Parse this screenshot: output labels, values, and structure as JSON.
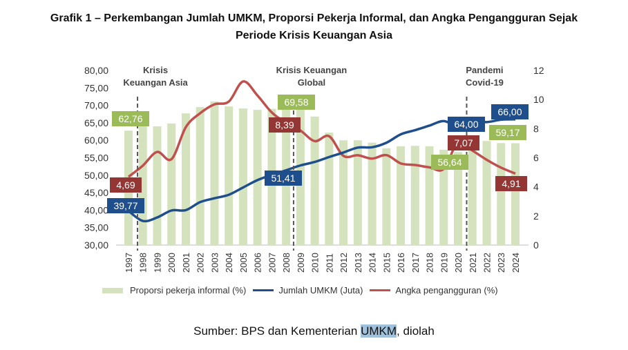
{
  "title_line1": "Grafik 1 – Perkembangan Jumlah UMKM, Proporsi Pekerja Informal, dan Angka Pengangguran Sejak",
  "title_line2": "Periode Krisis Keuangan Asia",
  "source": {
    "prefix": "Sumber: BPS dan Kementerian ",
    "highlighted": "UMKM",
    "suffix": ", diolah"
  },
  "colors": {
    "bars": "#d4e2bd",
    "umkm": "#1f4e8c",
    "unemployment": "#c0504d",
    "label_green": "#9bbb59",
    "label_red": "#943634",
    "label_blue": "#1f4e8c",
    "dashed": "#555555"
  },
  "chart_data": {
    "type": "bar+line",
    "categories": [
      "1997",
      "1998",
      "1999",
      "2000",
      "2001",
      "2002",
      "2003",
      "2004",
      "2005",
      "2006",
      "2007",
      "2008",
      "2009",
      "2010",
      "2011",
      "2012",
      "2013",
      "2014",
      "2015",
      "2016",
      "2017",
      "2018",
      "2019",
      "2020",
      "2021",
      "2022",
      "2023",
      "2024"
    ],
    "left_axis": {
      "range": [
        30,
        80
      ],
      "ticks": [
        "30,00",
        "35,00",
        "40,00",
        "45,00",
        "50,00",
        "55,00",
        "60,00",
        "65,00",
        "70,00",
        "75,00",
        "80,00"
      ]
    },
    "right_axis": {
      "range": [
        0,
        12
      ],
      "ticks": [
        "0",
        "2",
        "4",
        "6",
        "8",
        "10",
        "12"
      ]
    },
    "series": [
      {
        "name": "Proporsi pekerja informal (%)",
        "type": "bar",
        "axis": "left",
        "values": [
          62.76,
          64.5,
          64.0,
          64.8,
          67.7,
          69.5,
          71.1,
          69.7,
          69.1,
          68.7,
          69.0,
          69.58,
          69.4,
          66.8,
          62.2,
          60.0,
          60.0,
          59.3,
          57.7,
          58.3,
          58.4,
          58.3,
          57.3,
          56.64,
          59.5,
          59.8,
          59.2,
          59.17
        ]
      },
      {
        "name": "Jumlah UMKM (Juta)",
        "type": "line",
        "axis": "left",
        "values": [
          39.77,
          36.9,
          37.9,
          39.9,
          40.0,
          42.3,
          43.4,
          44.4,
          46.5,
          48.6,
          50.1,
          51.41,
          52.8,
          53.8,
          55.2,
          56.5,
          57.9,
          58.0,
          59.3,
          61.7,
          62.9,
          64.2,
          65.5,
          64.0,
          65.5,
          65.2,
          65.9,
          66.0
        ]
      },
      {
        "name": "Angka pengangguran (%)",
        "type": "line",
        "axis": "right",
        "values": [
          4.69,
          5.46,
          6.4,
          5.9,
          8.1,
          9.06,
          9.67,
          9.86,
          11.24,
          10.28,
          9.11,
          8.39,
          7.87,
          7.14,
          7.48,
          6.13,
          6.17,
          5.94,
          6.18,
          5.61,
          5.5,
          5.34,
          5.23,
          7.07,
          6.49,
          5.86,
          5.32,
          4.91
        ]
      }
    ],
    "data_labels": [
      {
        "text": "62,76",
        "series": 0,
        "year": "1997",
        "color": "green"
      },
      {
        "text": "4,69",
        "series": 2,
        "year": "1997",
        "color": "red"
      },
      {
        "text": "39,77",
        "series": 1,
        "year": "1997",
        "color": "blue"
      },
      {
        "text": "69,58",
        "series": 0,
        "year": "2008",
        "color": "green"
      },
      {
        "text": "8,39",
        "series": 2,
        "year": "2008",
        "color": "red"
      },
      {
        "text": "51,41",
        "series": 1,
        "year": "2008",
        "color": "blue"
      },
      {
        "text": "64,00",
        "series": 1,
        "year": "2020",
        "color": "blue"
      },
      {
        "text": "7,07",
        "series": 2,
        "year": "2020",
        "color": "red"
      },
      {
        "text": "56,64",
        "series": 0,
        "year": "2020",
        "color": "green"
      },
      {
        "text": "66,00",
        "series": 1,
        "year": "2024",
        "color": "blue"
      },
      {
        "text": "59,17",
        "series": 0,
        "year": "2024",
        "color": "green"
      },
      {
        "text": "4,91",
        "series": 2,
        "year": "2024",
        "color": "red"
      }
    ],
    "annotations": [
      {
        "x": 1997.63,
        "line1": "Krisis",
        "line2": "Keuangan Asia"
      },
      {
        "x": 2008.52,
        "line1": "Krisis Keuangan",
        "line2": "Global"
      },
      {
        "x": 2020.6,
        "line1": "Pandemi",
        "line2": "Covid-19"
      }
    ],
    "legend_position": "bottom",
    "grid": false
  }
}
